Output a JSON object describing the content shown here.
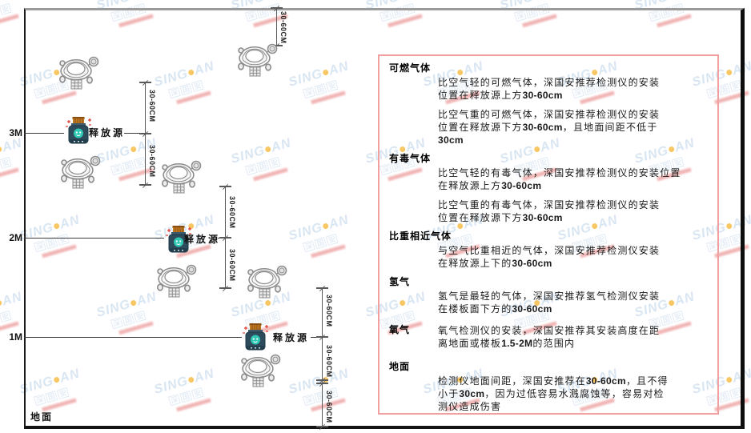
{
  "watermark": {
    "brand_prefix": "SING",
    "brand_suffix": "AN",
    "subtext": "深国安",
    "dot_color": "#f5a300"
  },
  "diagram": {
    "height_labels": [
      "3M",
      "2M",
      "1M"
    ],
    "ground_label": "地面",
    "release_source_label": "释放源",
    "dim_label": "30-60CM"
  },
  "panel": {
    "border_color": "#f29f9f",
    "sections": [
      {
        "heading": "可燃气体",
        "inline": false,
        "paragraphs": [
          "比空气轻的可燃气体，深国安推荐检测仪的安装\n位置在释放源上方30-60cm",
          "比空气重的可燃气体，深国安推荐检测仪的安装\n位置在释放源下方30-60cm，且地面间距不低于\n30cm"
        ]
      },
      {
        "heading": "有毒气体",
        "inline": false,
        "paragraphs": [
          "比空气轻的有毒气体，深国安推荐检测仪的安装位置\n在释放源上方30-60cm",
          "比空气重的有毒气体，深国安推荐检测仪的安装\n位置在释放源下方30-60cm"
        ]
      },
      {
        "heading": "比重相近气体",
        "inline": false,
        "paragraphs": [
          "与空气比重相近的气体，深国安推荐检测仪安装\n在释放源上下的30-60cm"
        ]
      },
      {
        "heading": "氢气",
        "inline": false,
        "paragraphs": [
          "氢气是最轻的气体，深国安推荐氢气检测仪安装\n在楼板面下方的30-60cm"
        ]
      },
      {
        "heading": "氧气",
        "inline": true,
        "paragraphs": [
          "氧气检测仪的安装，深国安推荐其安装高度在距\n离地面或楼板1.5-2M的范围内"
        ]
      },
      {
        "heading": "地面",
        "inline": false,
        "paragraphs": [
          "检测仪地面间距，深国安推荐在30-60cm，且不得\n小于30cm，因为过低容易水溅腐蚀等，容易对检\n测仪造成伤害"
        ]
      }
    ]
  }
}
